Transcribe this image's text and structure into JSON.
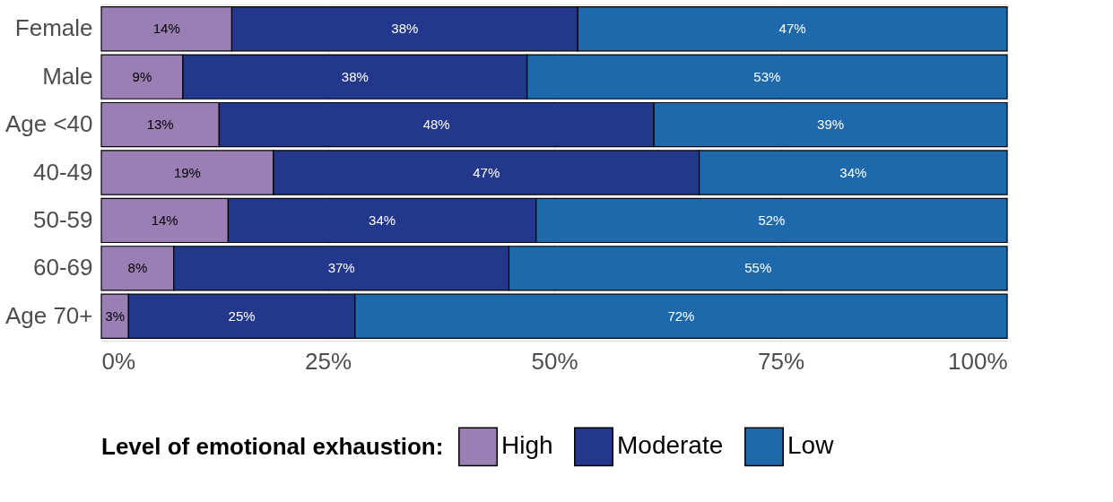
{
  "chart_data": {
    "type": "bar",
    "orientation": "horizontal",
    "stacked": true,
    "categories": [
      "Female",
      "Male",
      "Age <40",
      "40-49",
      "50-59",
      "60-69",
      "Age 70+"
    ],
    "series": [
      {
        "name": "High",
        "color": "#9a7fb5",
        "values": [
          14.4,
          9,
          13,
          19,
          14,
          8,
          3
        ],
        "value_labels": [
          "14%",
          "9%",
          "13%",
          "19%",
          "14%",
          "8%",
          "3%"
        ]
      },
      {
        "name": "Moderate",
        "color": "#23388c",
        "values": [
          38.2,
          38,
          48,
          47,
          34,
          37,
          25
        ],
        "value_labels": [
          "38%",
          "38%",
          "48%",
          "47%",
          "34%",
          "37%",
          "25%"
        ]
      },
      {
        "name": "Low",
        "color": "#1e69ab",
        "values": [
          47.4,
          53,
          39,
          34,
          52,
          55,
          72
        ],
        "value_labels": [
          "47%",
          "53%",
          "39%",
          "34%",
          "52%",
          "55%",
          "72%"
        ]
      }
    ],
    "xlim": [
      0,
      100
    ],
    "xticks": [
      {
        "value": 0,
        "label": "0%"
      },
      {
        "value": 25,
        "label": "25%"
      },
      {
        "value": 50,
        "label": "50%"
      },
      {
        "value": 75,
        "label": "75%"
      },
      {
        "value": 100,
        "label": "100%"
      }
    ],
    "legend_title": "Level of emotional exhaustion:",
    "legend": "bottom",
    "grid": true
  }
}
